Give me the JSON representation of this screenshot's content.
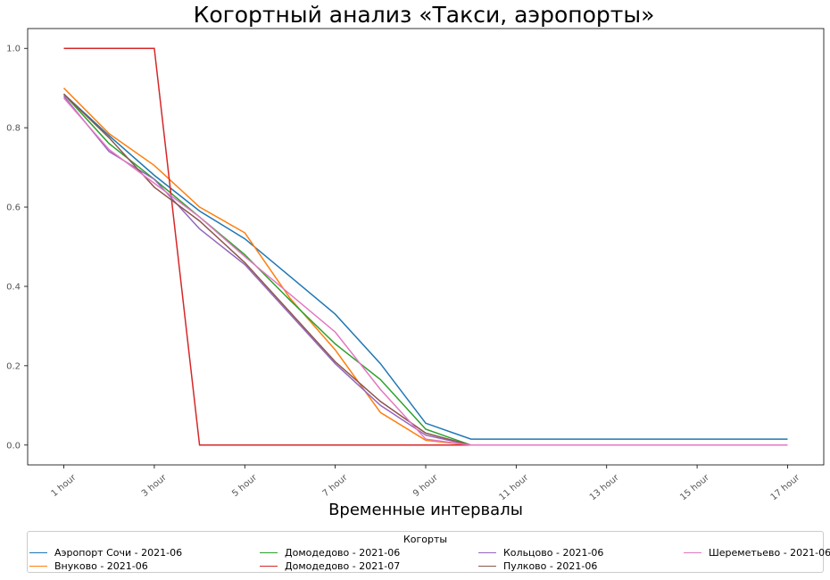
{
  "chart_data": {
    "type": "line",
    "title": "Когортный анализ «Такси, аэропорты»",
    "xlabel": "Временные интервалы",
    "ylabel": "",
    "x": [
      1,
      2,
      3,
      4,
      5,
      6,
      7,
      8,
      9,
      10,
      11,
      12,
      13,
      14,
      15,
      16,
      17
    ],
    "xticks": [
      1,
      3,
      5,
      7,
      9,
      11,
      13,
      15,
      17
    ],
    "xtick_labels": [
      "1 hour",
      "3 hour",
      "5 hour",
      "7 hour",
      "9 hour",
      "11 hour",
      "13 hour",
      "15 hour",
      "17 hour"
    ],
    "yticks": [
      0.0,
      0.2,
      0.4,
      0.6,
      0.8,
      1.0
    ],
    "ytick_labels": [
      "0.0",
      "0.2",
      "0.4",
      "0.6",
      "0.8",
      "1.0"
    ],
    "xlim": [
      0.2,
      17.8
    ],
    "ylim": [
      -0.05,
      1.05
    ],
    "grid": false,
    "legend_title": "Когорты",
    "legend_position": "bottom",
    "series": [
      {
        "name": "Аэропорт Сочи - 2021-06",
        "color": "#1f77b4",
        "values": [
          0.885,
          0.78,
          0.68,
          0.59,
          0.52,
          0.425,
          0.33,
          0.205,
          0.055,
          0.015,
          0.015,
          0.015,
          0.015,
          0.015,
          0.015,
          0.015,
          0.015
        ]
      },
      {
        "name": "Внуково - 2021-06",
        "color": "#ff7f0e",
        "values": [
          0.9,
          0.785,
          0.705,
          0.6,
          0.535,
          0.37,
          0.24,
          0.082,
          0.012,
          0.0,
          0.0,
          0.0,
          0.0,
          0.0,
          0.0,
          0.0,
          0.0
        ]
      },
      {
        "name": "Домодедово - 2021-06",
        "color": "#2ca02c",
        "values": [
          0.885,
          0.76,
          0.67,
          0.575,
          0.48,
          0.365,
          0.255,
          0.165,
          0.04,
          0.0,
          0.0,
          0.0,
          0.0,
          0.0,
          0.0,
          0.0,
          0.0
        ]
      },
      {
        "name": "Домодедово - 2021-07",
        "color": "#d62728",
        "values": [
          1.0,
          1.0,
          1.0,
          0.0,
          0.0,
          0.0,
          0.0,
          0.0,
          0.0,
          0.0,
          0.0,
          0.0,
          0.0,
          0.0,
          0.0,
          0.0,
          0.0
        ]
      },
      {
        "name": "Кольцово - 2021-06",
        "color": "#9467bd",
        "values": [
          0.88,
          0.74,
          0.67,
          0.545,
          0.455,
          0.33,
          0.205,
          0.1,
          0.025,
          0.0,
          0.0,
          0.0,
          0.0,
          0.0,
          0.0,
          0.0,
          0.0
        ]
      },
      {
        "name": "Пулково - 2021-06",
        "color": "#8c564b",
        "values": [
          0.885,
          0.775,
          0.65,
          0.565,
          0.46,
          0.335,
          0.21,
          0.11,
          0.03,
          0.0,
          0.0,
          0.0,
          0.0,
          0.0,
          0.0,
          0.0,
          0.0
        ]
      },
      {
        "name": "Шереметьево - 2021-06",
        "color": "#e377c2",
        "values": [
          0.875,
          0.745,
          0.66,
          0.575,
          0.475,
          0.38,
          0.285,
          0.14,
          0.015,
          0.0,
          0.0,
          0.0,
          0.0,
          0.0,
          0.0,
          0.0,
          0.0
        ]
      }
    ]
  }
}
